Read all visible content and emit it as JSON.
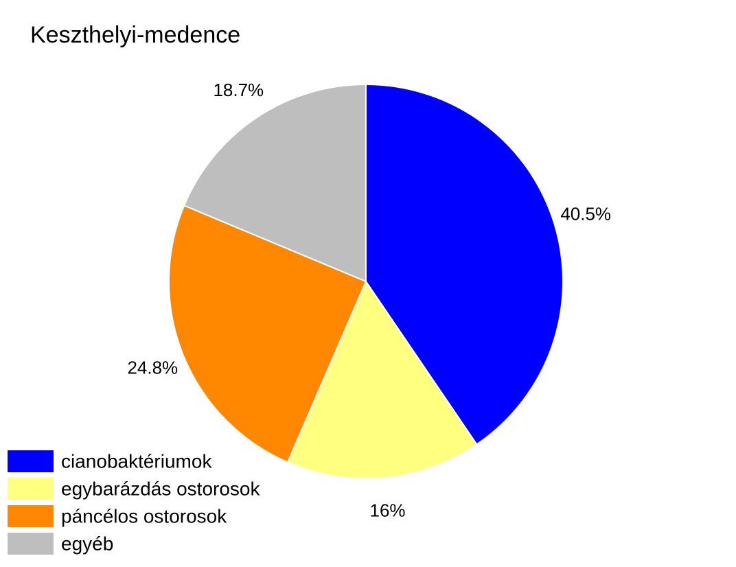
{
  "chart_data": {
    "type": "pie",
    "title": "Keszthelyi-medence",
    "categories": [
      "cianobaktériumok",
      "egybarázdás ostorosok",
      "páncélos ostorosok",
      "egyéb"
    ],
    "values": [
      40.5,
      16,
      24.8,
      18.7
    ],
    "value_labels": [
      "40.5%",
      "16%",
      "24.8%",
      "18.7%"
    ],
    "colors": [
      "#0000ff",
      "#ffff80",
      "#ff8800",
      "#bebebe"
    ],
    "start": "12 o'clock",
    "direction": "clockwise",
    "legend_position": "bottom-left"
  }
}
